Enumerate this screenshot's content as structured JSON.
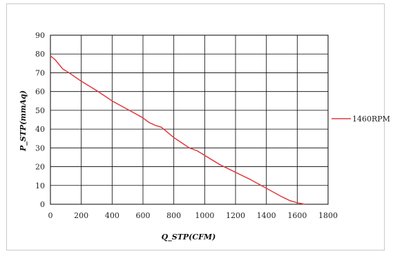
{
  "chart_data": {
    "type": "line",
    "xlabel": "Q_STP(CFM)",
    "ylabel": "P_STP(mmAq)",
    "xlim": [
      0,
      1800
    ],
    "ylim": [
      0,
      90
    ],
    "x_ticks": [
      0,
      200,
      400,
      600,
      800,
      1000,
      1200,
      1400,
      1600,
      1800
    ],
    "y_ticks": [
      0,
      10,
      20,
      30,
      40,
      50,
      60,
      70,
      80,
      90
    ],
    "grid": true,
    "legend_position": "right",
    "series": [
      {
        "name": "1460RPM",
        "color": "#e0393e",
        "x": [
          0,
          30,
          80,
          120,
          200,
          300,
          400,
          500,
          600,
          640,
          680,
          720,
          800,
          900,
          950,
          1000,
          1100,
          1200,
          1300,
          1400,
          1500,
          1550,
          1600,
          1650
        ],
        "y": [
          79,
          77,
          72,
          70,
          65.5,
          60.5,
          55,
          50.5,
          46,
          43.5,
          42,
          41,
          35.5,
          30,
          28.5,
          26,
          21,
          17,
          13,
          8.5,
          4,
          2,
          0.8,
          0
        ]
      }
    ]
  }
}
